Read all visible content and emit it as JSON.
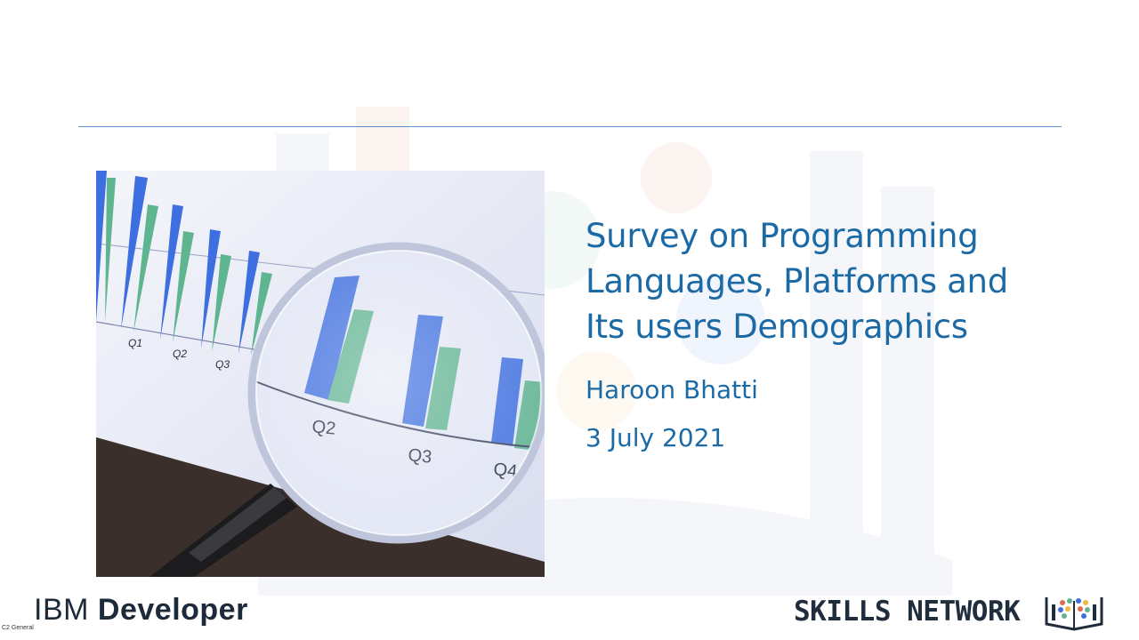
{
  "slide": {
    "title_lines": [
      "Survey on Programming",
      "Languages, Platforms and",
      "Its users Demographics"
    ],
    "author": "Haroon Bhatti",
    "date": "3 July 2021"
  },
  "photo": {
    "description_icon": "magnifying-glass-over-bar-chart",
    "axis_labels_small": [
      "Q1",
      "Q2",
      "Q3"
    ],
    "axis_labels_magnified": [
      "Q2",
      "Q3",
      "Q4"
    ],
    "colors": {
      "bar_blue": "#3e6fe0",
      "bar_green": "#5fb58f",
      "paper": "#eceef8"
    }
  },
  "footer": {
    "ibm_prefix": "IBM ",
    "ibm_word": "Developer",
    "classification": "C2 General",
    "skills_network": "SKILLS NETWORK",
    "skills_icon": "open-book-logo-icon"
  },
  "colors": {
    "accent": "#1b6aa5",
    "rule": "#5b8fc9",
    "dark_text": "#1f2d3d"
  }
}
